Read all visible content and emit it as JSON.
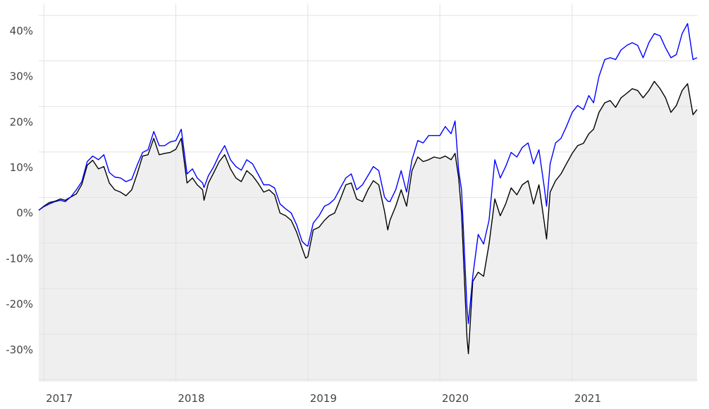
{
  "chart_data": {
    "type": "line",
    "title": "",
    "xlabel": "",
    "ylabel": "",
    "ylim": [
      -37.6,
      45.4
    ],
    "xlim": [
      "2016-12-18",
      "2021-12-14"
    ],
    "y_ticks": [
      40,
      30,
      20,
      10,
      0,
      -10,
      -20,
      -30
    ],
    "y_tick_labels": [
      "40%",
      "30%",
      "20%",
      "10%",
      "0%",
      "-10%",
      "-20%",
      "-30%"
    ],
    "x_ticks": [
      "2017-01-01",
      "2018-01-01",
      "2019-01-01",
      "2020-01-01",
      "2021-01-01"
    ],
    "x_tick_labels": [
      "2017",
      "2018",
      "2019",
      "2020",
      "2021"
    ],
    "grid": true,
    "legend": "none",
    "colors": {
      "blue_series": "#0000ff",
      "black_series": "#000000",
      "fill": "#efefef",
      "grid": "#e2e2e2"
    },
    "dates": [
      "2016-12-18",
      "2017-01-01",
      "2017-01-16",
      "2017-02-01",
      "2017-02-16",
      "2017-03-01",
      "2017-03-16",
      "2017-04-01",
      "2017-04-16",
      "2017-05-01",
      "2017-05-16",
      "2017-06-01",
      "2017-06-16",
      "2017-07-01",
      "2017-07-16",
      "2017-08-01",
      "2017-08-16",
      "2017-09-01",
      "2017-09-16",
      "2017-10-01",
      "2017-10-16",
      "2017-11-01",
      "2017-11-16",
      "2017-12-01",
      "2017-12-16",
      "2018-01-01",
      "2018-01-16",
      "2018-02-01",
      "2018-02-16",
      "2018-03-01",
      "2018-03-16",
      "2018-03-20",
      "2018-04-01",
      "2018-04-16",
      "2018-05-01",
      "2018-05-16",
      "2018-06-01",
      "2018-06-16",
      "2018-07-01",
      "2018-07-16",
      "2018-08-01",
      "2018-08-16",
      "2018-09-01",
      "2018-09-16",
      "2018-10-01",
      "2018-10-16",
      "2018-11-01",
      "2018-11-16",
      "2018-12-01",
      "2018-12-16",
      "2018-12-26",
      "2019-01-01",
      "2019-01-16",
      "2019-02-01",
      "2019-02-16",
      "2019-03-01",
      "2019-03-16",
      "2019-04-01",
      "2019-04-16",
      "2019-05-01",
      "2019-05-16",
      "2019-06-01",
      "2019-06-16",
      "2019-07-01",
      "2019-07-16",
      "2019-08-01",
      "2019-08-10",
      "2019-08-16",
      "2019-09-01",
      "2019-09-16",
      "2019-10-01",
      "2019-10-16",
      "2019-11-01",
      "2019-11-16",
      "2019-12-01",
      "2019-12-16",
      "2020-01-01",
      "2020-01-16",
      "2020-02-01",
      "2020-02-12",
      "2020-02-22",
      "2020-03-01",
      "2020-03-16",
      "2020-03-20",
      "2020-04-01",
      "2020-04-16",
      "2020-05-01",
      "2020-05-16",
      "2020-06-01",
      "2020-06-16",
      "2020-07-01",
      "2020-07-16",
      "2020-08-01",
      "2020-08-16",
      "2020-09-01",
      "2020-09-16",
      "2020-10-01",
      "2020-10-16",
      "2020-10-22",
      "2020-11-01",
      "2020-11-16",
      "2020-12-01",
      "2020-12-16",
      "2021-01-01",
      "2021-01-16",
      "2021-02-01",
      "2021-02-16",
      "2021-03-01",
      "2021-03-16",
      "2021-04-01",
      "2021-04-16",
      "2021-05-01",
      "2021-05-16",
      "2021-06-01",
      "2021-06-16",
      "2021-07-01",
      "2021-07-16",
      "2021-08-01",
      "2021-08-16",
      "2021-09-01",
      "2021-09-16",
      "2021-10-01",
      "2021-10-16",
      "2021-11-01",
      "2021-11-16",
      "2021-12-01",
      "2021-12-12"
    ],
    "series": [
      {
        "color": "#0000ff",
        "values": [
          0,
          0.8,
          1.4,
          1.9,
          2.2,
          1.9,
          2.9,
          4.5,
          6.3,
          10.7,
          11.9,
          11.1,
          12.2,
          8.3,
          7.3,
          7.1,
          6.3,
          6.8,
          9.9,
          12.7,
          13.3,
          17.3,
          14.2,
          14.2,
          15.0,
          15.3,
          17.8,
          8.0,
          9.1,
          7.1,
          6.0,
          5.0,
          7.6,
          9.6,
          12.2,
          14.2,
          11.1,
          9.6,
          8.8,
          11.1,
          10.2,
          8.0,
          5.6,
          5.6,
          4.9,
          1.4,
          0.3,
          -0.6,
          -3.2,
          -6.8,
          -7.6,
          -7.9,
          -2.8,
          -1.2,
          0.9,
          1.4,
          2.5,
          4.9,
          7.1,
          8.0,
          4.5,
          5.6,
          7.6,
          9.6,
          8.7,
          2.9,
          2.0,
          1.9,
          4.5,
          8.7,
          4.0,
          11.1,
          15.3,
          14.8,
          16.4,
          16.4,
          16.4,
          18.4,
          16.8,
          19.6,
          8.7,
          4.5,
          -21.3,
          -24.9,
          -14.5,
          -5.3,
          -7.4,
          -2.2,
          11.1,
          7.1,
          9.6,
          12.7,
          11.7,
          13.8,
          14.8,
          10.2,
          13.3,
          4.9,
          0.9,
          10.2,
          14.8,
          15.8,
          18.4,
          21.5,
          23.0,
          22.1,
          25.2,
          23.6,
          29.4,
          33.1,
          33.5,
          33.1,
          35.2,
          36.2,
          36.8,
          36.2,
          33.5,
          36.8,
          38.8,
          38.3,
          35.7,
          33.5,
          34.2,
          38.8,
          41.0,
          33.1,
          33.5
        ]
      },
      {
        "color": "#000000",
        "values": [
          0,
          0.9,
          1.7,
          2.0,
          2.5,
          2.2,
          2.9,
          3.6,
          5.7,
          9.9,
          11.0,
          9.1,
          9.6,
          6.0,
          4.5,
          4.0,
          3.2,
          4.5,
          8.0,
          11.9,
          12.2,
          15.8,
          12.2,
          12.5,
          12.7,
          13.4,
          15.8,
          6.0,
          7.1,
          5.6,
          4.5,
          2.2,
          6.0,
          8.3,
          10.7,
          12.2,
          9.1,
          7.1,
          6.3,
          8.7,
          7.6,
          6.0,
          4.0,
          4.5,
          3.4,
          -0.6,
          -1.2,
          -2.2,
          -4.8,
          -8.3,
          -10.5,
          -10.2,
          -4.3,
          -3.7,
          -2.2,
          -1.2,
          -0.6,
          2.5,
          5.6,
          6.0,
          2.5,
          1.9,
          4.5,
          6.5,
          5.6,
          -0.2,
          -4.3,
          -2.2,
          0.9,
          4.5,
          0.9,
          8.7,
          11.7,
          10.7,
          11.1,
          11.7,
          11.4,
          11.9,
          11.1,
          12.5,
          7.1,
          -0.6,
          -28.0,
          -31.5,
          -15.6,
          -13.6,
          -14.5,
          -7.4,
          2.5,
          -1.2,
          1.4,
          4.9,
          3.4,
          5.6,
          6.5,
          1.4,
          5.6,
          -2.8,
          -6.3,
          4.0,
          6.5,
          8.0,
          10.2,
          12.5,
          14.2,
          14.7,
          16.8,
          17.8,
          21.5,
          23.6,
          24.1,
          22.6,
          24.7,
          25.7,
          26.7,
          26.3,
          24.7,
          26.3,
          28.3,
          26.7,
          24.7,
          21.5,
          23.0,
          26.3,
          27.8,
          21.0,
          22.1
        ]
      }
    ]
  }
}
